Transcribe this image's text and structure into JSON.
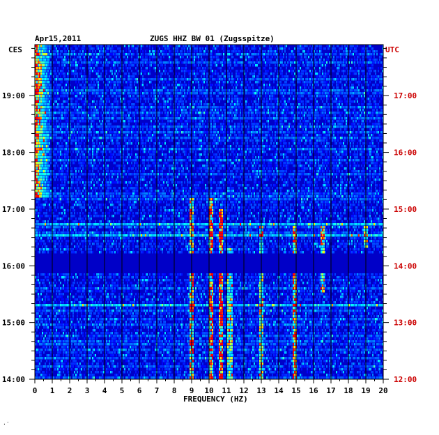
{
  "header": {
    "date": "Apr15,2011",
    "title": "ZUGS HHZ BW 01 (Zugsspitze)",
    "left_timezone": "CES",
    "right_timezone": "UTC"
  },
  "footnote": "·′",
  "chart_data": {
    "type": "heatmap",
    "title": "ZUGS HHZ BW 01 (Zugsspitze)",
    "xlabel": "FREQUENCY (HZ)",
    "ylabel": "",
    "xlim": [
      0,
      20
    ],
    "x_ticks": [
      "0",
      "1",
      "2",
      "3",
      "4",
      "5",
      "6",
      "7",
      "8",
      "9",
      "10",
      "11",
      "12",
      "13",
      "14",
      "15",
      "16",
      "17",
      "18",
      "19",
      "20"
    ],
    "left_axis": {
      "timezone": "CES",
      "ticks": [
        "19:00",
        "18:00",
        "17:00",
        "16:00",
        "15:00",
        "14:00"
      ],
      "tick_hours": [
        19,
        18,
        17,
        16,
        15,
        14
      ]
    },
    "right_axis": {
      "timezone": "UTC",
      "ticks": [
        "17:00",
        "16:00",
        "15:00",
        "14:00",
        "13:00",
        "12:00"
      ],
      "tick_hours": [
        17,
        16,
        15,
        14,
        13,
        12
      ]
    },
    "time_range_ces_hours": [
      14.0,
      19.9
    ],
    "colormap": [
      "#000080",
      "#0000ff",
      "#00b4ff",
      "#00ffff",
      "#ffff00",
      "#ff0000"
    ],
    "features": [
      {
        "freq_range_hz": [
          0,
          1
        ],
        "time_range_ces_hours": [
          17.2,
          19.9
        ],
        "intensity": 0.85
      },
      {
        "freq_hz": 9.0,
        "time_range_ces_hours": [
          14.0,
          17.2
        ],
        "intensity": 0.7
      },
      {
        "freq_hz": 10.1,
        "time_range_ces_hours": [
          14.0,
          17.2
        ],
        "intensity": 0.8
      },
      {
        "freq_hz": 10.7,
        "time_range_ces_hours": [
          14.0,
          17.0
        ],
        "intensity": 0.9
      },
      {
        "freq_hz": 11.2,
        "time_range_ces_hours": [
          14.0,
          16.3
        ],
        "intensity": 0.55
      },
      {
        "freq_hz": 13.0,
        "time_range_ces_hours": [
          14.0,
          16.7
        ],
        "intensity": 0.55
      },
      {
        "freq_hz": 14.9,
        "time_range_ces_hours": [
          14.0,
          16.7
        ],
        "intensity": 0.75
      },
      {
        "freq_hz": 16.5,
        "time_range_ces_hours": [
          15.5,
          16.7
        ],
        "intensity": 0.6
      },
      {
        "freq_hz": 19.0,
        "time_range_ces_hours": [
          16.3,
          16.7
        ],
        "intensity": 0.6
      }
    ],
    "bright_rows_ces_hours": [
      16.72,
      16.53,
      15.3
    ],
    "quiet_rows_ces_hours": [
      [
        15.85,
        16.2
      ]
    ]
  }
}
